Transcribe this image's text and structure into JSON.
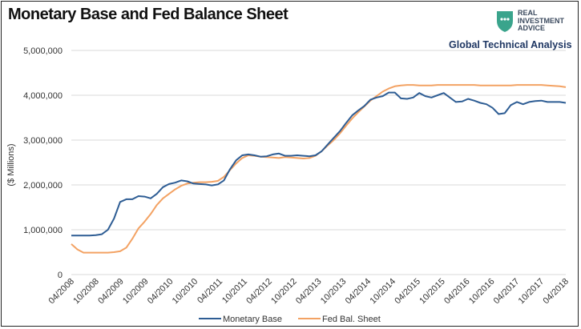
{
  "header": {
    "title": "Monetary Base and Fed Balance Sheet",
    "subtitle": "Global Technical Analysis",
    "logo_line1": "REAL",
    "logo_line2": "INVESTMENT",
    "logo_line3": "ADVICE"
  },
  "colors": {
    "monetary_base": "#2e5d94",
    "fed_balance_sheet": "#f3a263",
    "logo_accent": "#3aa48c"
  },
  "chart_data": {
    "type": "line",
    "title": "Monetary Base and Fed Balance Sheet",
    "ylabel": "($ Millions)",
    "xlabel": "",
    "ylim": [
      0,
      5000000
    ],
    "yticks": [
      0,
      1000000,
      2000000,
      3000000,
      4000000,
      5000000
    ],
    "ytick_labels": [
      "0",
      "1,000,000",
      "2,000,000",
      "3,000,000",
      "4,000,000",
      "5,000,000"
    ],
    "xtick_labels": [
      "04/2008",
      "10/2008",
      "04/2009",
      "10/2009",
      "04/2010",
      "10/2010",
      "04/2011",
      "10/2011",
      "04/2012",
      "10/2012",
      "04/2013",
      "10/2013",
      "04/2014",
      "10/2014",
      "04/2015",
      "10/2015",
      "04/2016",
      "10/2016",
      "04/2017",
      "10/2017",
      "04/2018"
    ],
    "x_start": "04/2008",
    "grid": "horizontal",
    "legend_position": "bottom",
    "series": [
      {
        "name": "Monetary Base",
        "values": [
          870000,
          870000,
          870000,
          870000,
          880000,
          900000,
          1000000,
          1250000,
          1620000,
          1680000,
          1680000,
          1750000,
          1740000,
          1700000,
          1800000,
          1950000,
          2020000,
          2050000,
          2100000,
          2080000,
          2030000,
          2020000,
          2010000,
          1990000,
          2010000,
          2100000,
          2350000,
          2550000,
          2660000,
          2680000,
          2660000,
          2630000,
          2640000,
          2680000,
          2700000,
          2650000,
          2650000,
          2660000,
          2650000,
          2640000,
          2660000,
          2750000,
          2900000,
          3050000,
          3200000,
          3380000,
          3550000,
          3660000,
          3760000,
          3900000,
          3950000,
          3980000,
          4060000,
          4060000,
          3930000,
          3920000,
          3950000,
          4050000,
          3980000,
          3950000,
          4000000,
          4050000,
          3950000,
          3850000,
          3860000,
          3920000,
          3880000,
          3830000,
          3800000,
          3720000,
          3580000,
          3600000,
          3780000,
          3850000,
          3800000,
          3850000,
          3870000,
          3880000,
          3850000,
          3850000,
          3850000,
          3830000
        ]
      },
      {
        "name": "Fed Bal. Sheet",
        "values": [
          680000,
          560000,
          490000,
          490000,
          490000,
          490000,
          490000,
          500000,
          520000,
          600000,
          800000,
          1030000,
          1180000,
          1350000,
          1550000,
          1700000,
          1800000,
          1900000,
          1980000,
          2030000,
          2050000,
          2060000,
          2060000,
          2070000,
          2090000,
          2180000,
          2330000,
          2480000,
          2600000,
          2660000,
          2650000,
          2630000,
          2620000,
          2610000,
          2600000,
          2620000,
          2610000,
          2600000,
          2590000,
          2600000,
          2650000,
          2750000,
          2880000,
          3000000,
          3150000,
          3320000,
          3480000,
          3620000,
          3750000,
          3880000,
          3980000,
          4080000,
          4150000,
          4200000,
          4220000,
          4230000,
          4230000,
          4220000,
          4220000,
          4220000,
          4230000,
          4230000,
          4230000,
          4230000,
          4230000,
          4230000,
          4230000,
          4220000,
          4220000,
          4220000,
          4220000,
          4220000,
          4220000,
          4230000,
          4230000,
          4230000,
          4230000,
          4230000,
          4220000,
          4210000,
          4200000,
          4180000
        ]
      }
    ]
  }
}
